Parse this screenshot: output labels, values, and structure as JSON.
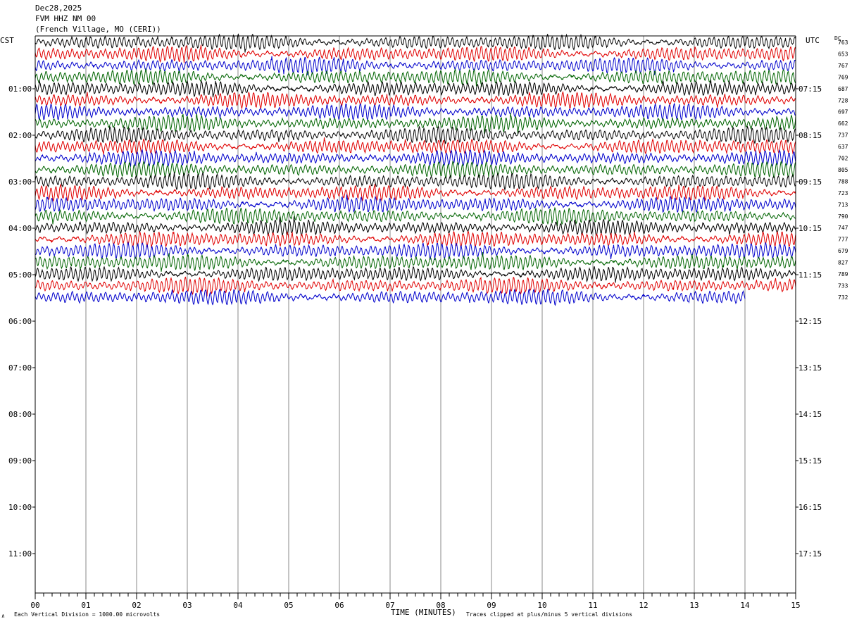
{
  "header": {
    "date": "Dec28,2025",
    "channel": "FVM HHZ NM 00",
    "station": "(French Village, MO (CERI))"
  },
  "chart_data": {
    "type": "line",
    "subtype": "helicorder",
    "left_timezone": "CST",
    "right_timezone": "UTC",
    "dc_label": "DC",
    "minutes_per_line": 15,
    "x_ticks": [
      "00",
      "01",
      "02",
      "03",
      "04",
      "05",
      "06",
      "07",
      "08",
      "09",
      "10",
      "11",
      "12",
      "13",
      "14",
      "15"
    ],
    "xlim": [
      0,
      15
    ],
    "xlabel": "TIME (MINUTES)",
    "left_hour_labels": [
      "01:00",
      "02:00",
      "03:00",
      "04:00",
      "05:00",
      "06:00",
      "07:00",
      "08:00",
      "09:00",
      "10:00",
      "11:00"
    ],
    "right_hour_labels": [
      "07:15",
      "08:15",
      "09:15",
      "10:15",
      "11:15",
      "12:15",
      "13:15",
      "14:15",
      "15:15",
      "16:15",
      "17:15"
    ],
    "dc_offsets": [
      763,
      653,
      767,
      769,
      687,
      728,
      697,
      662,
      737,
      637,
      702,
      805,
      788,
      723,
      713,
      790,
      747,
      777,
      679,
      827,
      789,
      733,
      732
    ],
    "trace_colors": [
      "#000000",
      "#e00000",
      "#0000cc",
      "#006400"
    ],
    "last_trace_end_minute": 14.0,
    "amplitude_note": "Each Vertical Division = 1000.00 microvolts",
    "clip_note": "Traces clipped at plus/minus 5 vertical divisions",
    "grid_vertical": true
  },
  "footer": {
    "left_mark": "∧",
    "amplitude_note": "Each Vertical Division = 1000.00 microvolts",
    "clip_note": "Traces clipped at plus/minus 5 vertical divisions"
  }
}
